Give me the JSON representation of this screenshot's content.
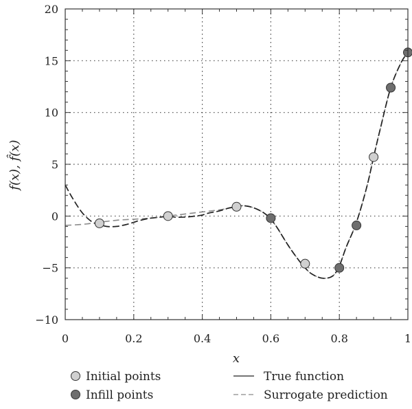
{
  "chart_data": {
    "type": "line",
    "xlabel": "x",
    "ylabel": "f(x), f̂(x)",
    "xlim": [
      0,
      1
    ],
    "ylim": [
      -10,
      20
    ],
    "x_ticks": [
      0,
      0.2,
      0.4,
      0.6,
      0.8,
      1
    ],
    "x_tick_labels": [
      "0",
      "0.2",
      "0.4",
      "0.6",
      "0.8",
      "1"
    ],
    "y_ticks": [
      -10,
      -5,
      0,
      5,
      10,
      15,
      20
    ],
    "y_tick_labels": [
      "−10",
      "−5",
      "0",
      "5",
      "10",
      "15",
      "20"
    ],
    "grid": "dotted",
    "series": [
      {
        "name": "True function",
        "style": "solid",
        "color": "#222222",
        "x": [
          0,
          0.02,
          0.05,
          0.08,
          0.1,
          0.12,
          0.15,
          0.18,
          0.2,
          0.22,
          0.25,
          0.28,
          0.3,
          0.32,
          0.35,
          0.38,
          0.4,
          0.42,
          0.45,
          0.48,
          0.5,
          0.52,
          0.55,
          0.58,
          0.6,
          0.62,
          0.65,
          0.68,
          0.7,
          0.72,
          0.75,
          0.78,
          0.8,
          0.82,
          0.85,
          0.88,
          0.9,
          0.92,
          0.95,
          0.98,
          1
        ],
        "y": [
          3.0,
          1.8,
          0.3,
          -0.6,
          -0.8,
          -1.0,
          -1.0,
          -0.8,
          -0.6,
          -0.4,
          -0.2,
          -0.1,
          0.0,
          -0.1,
          -0.1,
          0.0,
          0.1,
          0.3,
          0.5,
          0.8,
          0.9,
          1.0,
          0.8,
          0.3,
          -0.3,
          -1.2,
          -2.8,
          -4.2,
          -5.0,
          -5.6,
          -6.0,
          -5.8,
          -4.8,
          -3.0,
          -0.6,
          2.8,
          5.7,
          8.5,
          12.4,
          14.8,
          15.8
        ]
      },
      {
        "name": "Surrogate prediction",
        "style": "dashed",
        "color": "#8a8a8a",
        "x": [
          0,
          0.05,
          0.1,
          0.15,
          0.2,
          0.25,
          0.3,
          0.35,
          0.4,
          0.45,
          0.5,
          0.52,
          0.55,
          0.58,
          0.6,
          0.62,
          0.65,
          0.68,
          0.7,
          0.72,
          0.75,
          0.78,
          0.8,
          0.82,
          0.85,
          0.88,
          0.9,
          0.92,
          0.95,
          0.98,
          1
        ],
        "y": [
          -0.9,
          -0.8,
          -0.6,
          -0.4,
          -0.3,
          -0.2,
          0.0,
          0.2,
          0.4,
          0.6,
          0.9,
          1.0,
          0.8,
          0.3,
          -0.3,
          -1.2,
          -2.8,
          -4.2,
          -5.0,
          -5.6,
          -6.0,
          -5.8,
          -4.8,
          -3.0,
          -0.6,
          2.8,
          5.7,
          8.5,
          12.4,
          14.8,
          15.8
        ]
      }
    ],
    "points": [
      {
        "name": "Initial points",
        "color": "#d0d0d0",
        "x": [
          0.1,
          0.3,
          0.5,
          0.7,
          0.9
        ],
        "y": [
          -0.7,
          0.0,
          0.9,
          -4.6,
          5.7
        ]
      },
      {
        "name": "Infill points",
        "color": "#6e6e6e",
        "x": [
          0.6,
          0.8,
          0.85,
          0.95,
          1.0
        ],
        "y": [
          -0.2,
          -5.0,
          -0.9,
          12.4,
          15.8
        ]
      }
    ],
    "legend": [
      {
        "label": "Initial points",
        "marker": "circle-light"
      },
      {
        "label": "Infill points",
        "marker": "circle-dark"
      },
      {
        "label": "True function",
        "marker": "line-solid"
      },
      {
        "label": "Surrogate prediction",
        "marker": "line-dashed"
      }
    ]
  }
}
